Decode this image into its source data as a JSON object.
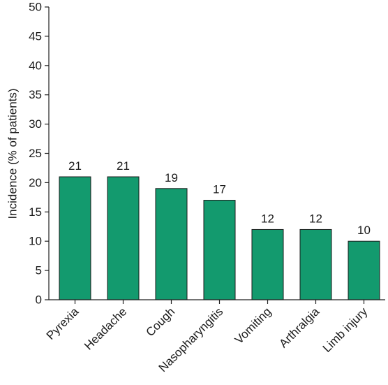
{
  "chart_data": {
    "type": "bar",
    "categories": [
      "Pyrexia",
      "Headache",
      "Cough",
      "Nasopharyngitis",
      "Vomiting",
      "Arthralgia",
      "Limb injury"
    ],
    "values": [
      21,
      21,
      19,
      17,
      12,
      12,
      10
    ],
    "data_labels": [
      "21",
      "21",
      "19",
      "17",
      "12",
      "12",
      "10"
    ],
    "title": "",
    "xlabel": "",
    "ylabel": "Incidence (% of patients)",
    "ylim": [
      0,
      50
    ],
    "yticks": [
      0,
      5,
      10,
      15,
      20,
      25,
      30,
      35,
      40,
      45,
      50
    ],
    "grid": false,
    "legend": "none",
    "bar_color": "#139a6e"
  }
}
